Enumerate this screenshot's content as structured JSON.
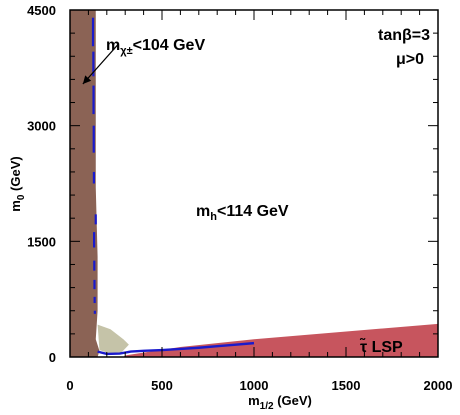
{
  "chart_data": {
    "type": "area",
    "x_axis": {
      "label_main": "m",
      "label_sub": "1/2",
      "label_unit": " (GeV)",
      "range": [
        0,
        2000
      ],
      "ticks": [
        0,
        500,
        1000,
        1500,
        2000
      ],
      "tick_labels": [
        "0",
        "500",
        "1000",
        "1500",
        "2000"
      ]
    },
    "y_axis": {
      "label_main": "m",
      "label_sub": "0",
      "label_unit": " (GeV)",
      "range": [
        0,
        4500
      ],
      "ticks": [
        0,
        1500,
        3000,
        4500
      ],
      "tick_labels": [
        "0",
        "1500",
        "3000",
        "4500"
      ]
    },
    "annotations": {
      "tanbeta": "tanβ=3",
      "mu": "μ>0",
      "chargino_prefix": "m",
      "chargino_sub": "χ±",
      "chargino_suffix": "<104 GeV",
      "higgs_prefix": "m",
      "higgs_sub": "h",
      "higgs_suffix": "<114 GeV",
      "stau_symbol": "τ̃",
      "stau_suffix": " LSP"
    },
    "regions": [
      {
        "name": "chargino-excluded",
        "color": "#8b6355",
        "points": [
          [
            0,
            4500
          ],
          [
            140,
            4500
          ],
          [
            140,
            2200
          ],
          [
            150,
            1300
          ],
          [
            150,
            600
          ],
          [
            140,
            230
          ],
          [
            160,
            80
          ],
          [
            150,
            0
          ],
          [
            0,
            0
          ]
        ]
      },
      {
        "name": "stau-lsp",
        "color": "#c7555e",
        "points": [
          [
            290,
            0
          ],
          [
            2000,
            0
          ],
          [
            2000,
            430
          ],
          [
            1000,
            230
          ],
          [
            600,
            130
          ],
          [
            300,
            20
          ]
        ]
      },
      {
        "name": "gray-excluded",
        "color": "#c5c3a8",
        "points": [
          [
            150,
            420
          ],
          [
            220,
            360
          ],
          [
            290,
            230
          ],
          [
            320,
            160
          ],
          [
            280,
            60
          ],
          [
            220,
            40
          ],
          [
            160,
            90
          ]
        ]
      }
    ],
    "wmap_strips": {
      "color": "#1a1acc",
      "segments": [
        [
          [
            125,
            4400
          ],
          [
            125,
            4030
          ]
        ],
        [
          [
            127,
            3960
          ],
          [
            127,
            3640
          ]
        ],
        [
          [
            128,
            3520
          ],
          [
            128,
            3150
          ]
        ],
        [
          [
            129,
            3000
          ],
          [
            129,
            2650
          ]
        ],
        [
          [
            130,
            2400
          ],
          [
            130,
            2250
          ]
        ],
        [
          [
            131,
            1620
          ],
          [
            131,
            1420
          ]
        ],
        [
          [
            132,
            1250
          ],
          [
            132,
            1120
          ]
        ],
        [
          [
            133,
            1000
          ],
          [
            133,
            880
          ]
        ],
        [
          [
            134,
            780
          ],
          [
            134,
            700
          ]
        ],
        [
          [
            135,
            600
          ],
          [
            135,
            560
          ]
        ],
        [
          [
            140,
            1850
          ],
          [
            140,
            1720
          ]
        ]
      ],
      "bottom_curve": [
        [
          150,
          70
        ],
        [
          200,
          40
        ],
        [
          270,
          45
        ],
        [
          330,
          70
        ],
        [
          400,
          80
        ],
        [
          500,
          90
        ],
        [
          600,
          105
        ],
        [
          700,
          120
        ],
        [
          800,
          140
        ],
        [
          900,
          160
        ],
        [
          1000,
          180
        ]
      ]
    },
    "chargino_arrow": {
      "from": [
        260,
        4050
      ],
      "to": [
        70,
        3540
      ]
    },
    "grid": false
  }
}
